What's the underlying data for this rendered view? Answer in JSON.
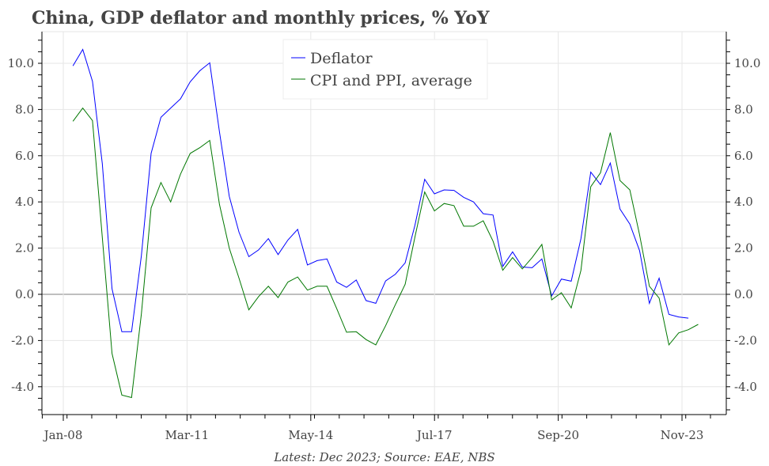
{
  "chart_data": {
    "type": "line",
    "title": "China, GDP deflator and monthly prices, % YoY",
    "source_note": "Latest: Dec 2023; Source: EAE, NBS",
    "xlabel": "",
    "ylabel": "",
    "ylim": [
      -5.1,
      11.3
    ],
    "xlim": [
      "2008-01",
      "2024-06"
    ],
    "grid": true,
    "legend_position": "top-center",
    "x_tick_labels": [
      "Jan-08",
      "Mar-11",
      "May-14",
      "Jul-17",
      "Sep-20",
      "Nov-23"
    ],
    "x_tick_dates": [
      "2008-01",
      "2011-03",
      "2014-05",
      "2017-07",
      "2020-09",
      "2023-11"
    ],
    "y_ticks": [
      -4,
      -2,
      0,
      2,
      4,
      6,
      8,
      10
    ],
    "y_tick_labels": [
      "-4.0",
      "-2.0",
      "0.0",
      "2.0",
      "4.0",
      "6.0",
      "8.0",
      "10.0"
    ],
    "x": [
      "2008-03",
      "2008-06",
      "2008-09",
      "2008-12",
      "2009-03",
      "2009-06",
      "2009-09",
      "2009-12",
      "2010-03",
      "2010-06",
      "2010-09",
      "2010-12",
      "2011-03",
      "2011-06",
      "2011-09",
      "2011-12",
      "2012-03",
      "2012-06",
      "2012-09",
      "2012-12",
      "2013-03",
      "2013-06",
      "2013-09",
      "2013-12",
      "2014-03",
      "2014-06",
      "2014-09",
      "2014-12",
      "2015-03",
      "2015-06",
      "2015-09",
      "2015-12",
      "2016-03",
      "2016-06",
      "2016-09",
      "2016-12",
      "2017-03",
      "2017-06",
      "2017-09",
      "2017-12",
      "2018-03",
      "2018-06",
      "2018-09",
      "2018-12",
      "2019-03",
      "2019-06",
      "2019-09",
      "2019-12",
      "2020-03",
      "2020-06",
      "2020-09",
      "2020-12",
      "2021-03",
      "2021-06",
      "2021-09",
      "2021-12",
      "2022-03",
      "2022-06",
      "2022-09",
      "2022-12",
      "2023-03",
      "2023-06",
      "2023-09",
      "2023-12",
      "2024-03"
    ],
    "series": [
      {
        "name": "Deflator",
        "color": "#0000ff",
        "values": [
          9.89,
          10.6,
          9.22,
          5.66,
          0.24,
          -1.62,
          -1.62,
          1.67,
          6.1,
          7.66,
          8.06,
          8.46,
          9.2,
          9.68,
          10.02,
          7.03,
          4.24,
          2.69,
          1.63,
          1.92,
          2.41,
          1.72,
          2.35,
          2.81,
          1.27,
          1.46,
          1.53,
          0.53,
          0.3,
          0.62,
          -0.27,
          -0.39,
          0.58,
          0.87,
          1.36,
          2.98,
          4.98,
          4.35,
          4.52,
          4.5,
          4.2,
          4.0,
          3.49,
          3.43,
          1.21,
          1.84,
          1.18,
          1.15,
          1.53,
          -0.07,
          0.66,
          0.57,
          2.41,
          5.29,
          4.75,
          5.68,
          3.69,
          3.04,
          1.89,
          -0.39,
          0.7,
          -0.87,
          -0.98,
          -1.03,
          null
        ]
      },
      {
        "name": "CPI and PPI, average",
        "color": "#007700",
        "values": [
          7.49,
          8.06,
          7.52,
          2.47,
          -2.56,
          -4.36,
          -4.47,
          -0.85,
          3.74,
          4.84,
          4.0,
          5.2,
          6.1,
          6.35,
          6.66,
          3.89,
          2.0,
          0.7,
          -0.67,
          -0.1,
          0.35,
          -0.14,
          0.53,
          0.75,
          0.18,
          0.35,
          0.35,
          -0.62,
          -1.64,
          -1.62,
          -1.96,
          -2.19,
          -1.36,
          -0.45,
          0.43,
          2.47,
          4.43,
          3.61,
          3.93,
          3.84,
          2.95,
          2.95,
          3.18,
          2.3,
          1.04,
          1.59,
          1.1,
          1.59,
          2.16,
          -0.24,
          0.07,
          -0.59,
          1.04,
          4.66,
          5.26,
          7.0,
          4.92,
          4.52,
          2.58,
          0.35,
          -0.16,
          -2.19,
          -1.67,
          -1.53,
          -1.3
        ]
      }
    ]
  }
}
